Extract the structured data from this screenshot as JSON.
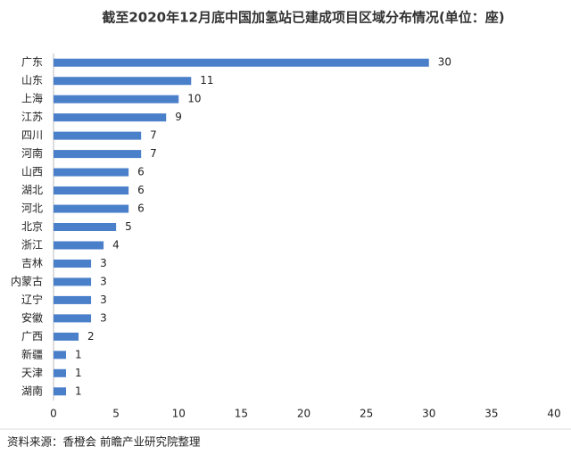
{
  "chart_data": {
    "type": "hbar",
    "title": "截至2020年12月底中国加氢站已建成项目区域分布情况(单位：座)",
    "categories": [
      "广东",
      "山东",
      "上海",
      "江苏",
      "四川",
      "河南",
      "山西",
      "湖北",
      "河北",
      "北京",
      "浙江",
      "吉林",
      "内蒙古",
      "辽宁",
      "安徽",
      "广西",
      "新疆",
      "天津",
      "湖南"
    ],
    "values": [
      30,
      11,
      10,
      9,
      7,
      7,
      6,
      6,
      6,
      5,
      4,
      3,
      3,
      3,
      3,
      2,
      1,
      1,
      1
    ],
    "color": "#4a7fca",
    "xlim": [
      0,
      40
    ],
    "xticks": [
      0,
      5,
      10,
      15,
      20,
      25,
      30,
      35,
      40
    ],
    "source": "资料来源：香橙会 前瞻产业研究院整理"
  }
}
